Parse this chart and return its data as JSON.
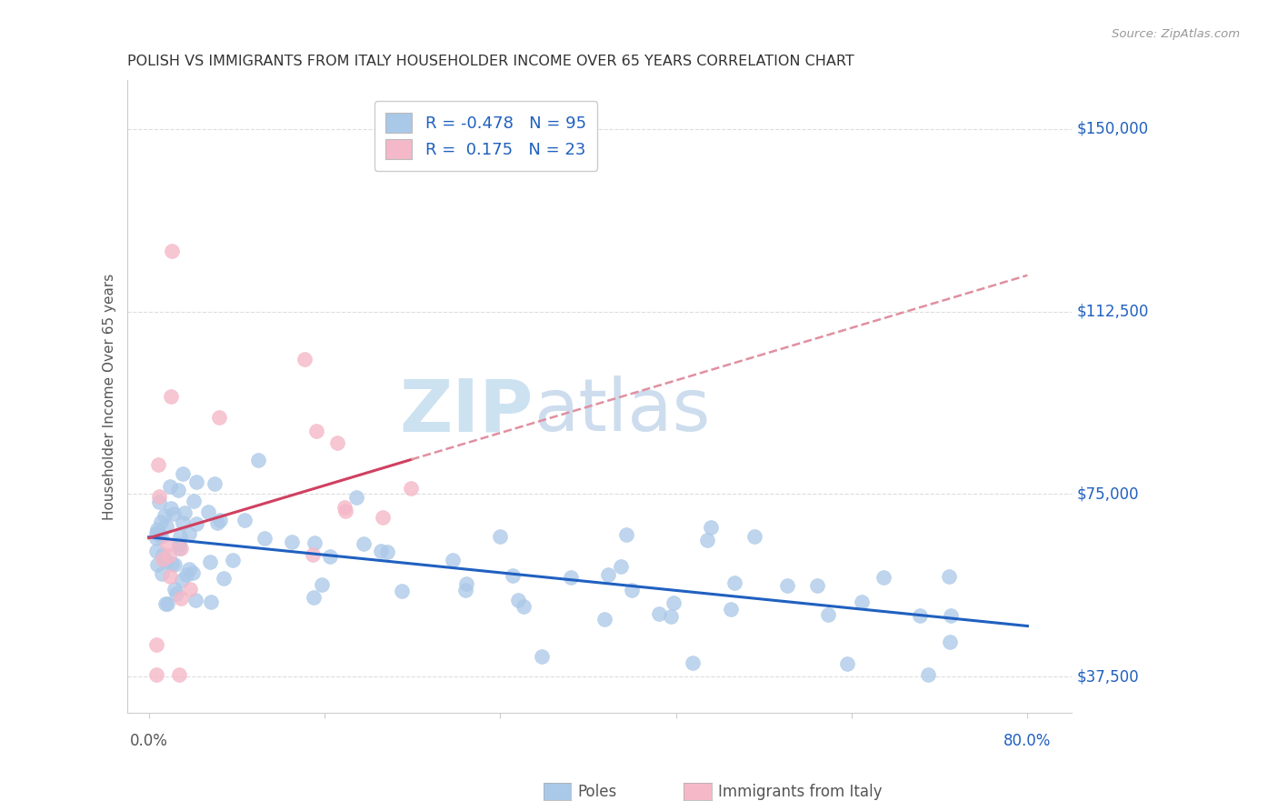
{
  "title": "POLISH VS IMMIGRANTS FROM ITALY HOUSEHOLDER INCOME OVER 65 YEARS CORRELATION CHART",
  "source": "Source: ZipAtlas.com",
  "ylabel": "Householder Income Over 65 years",
  "y_ticks": [
    37500,
    75000,
    112500,
    150000
  ],
  "y_tick_labels": [
    "$37,500",
    "$75,000",
    "$112,500",
    "$150,000"
  ],
  "legend_poles_R": "-0.478",
  "legend_poles_N": "95",
  "legend_italy_R": "0.175",
  "legend_italy_N": "23",
  "poles_color": "#aac8e8",
  "italy_color": "#f5b8c8",
  "poles_line_color": "#2060c0",
  "italy_line_color": "#d04060",
  "italy_dash_color": "#e090a0",
  "label_color": "#2060c0",
  "title_color": "#333333",
  "grid_color": "#dddddd",
  "watermark_color": "#d5eaf8",
  "background_color": "#ffffff",
  "n_poles": 95,
  "n_italy": 23,
  "xmin": 0,
  "xmax": 80,
  "ymin": 30000,
  "ymax": 160000
}
